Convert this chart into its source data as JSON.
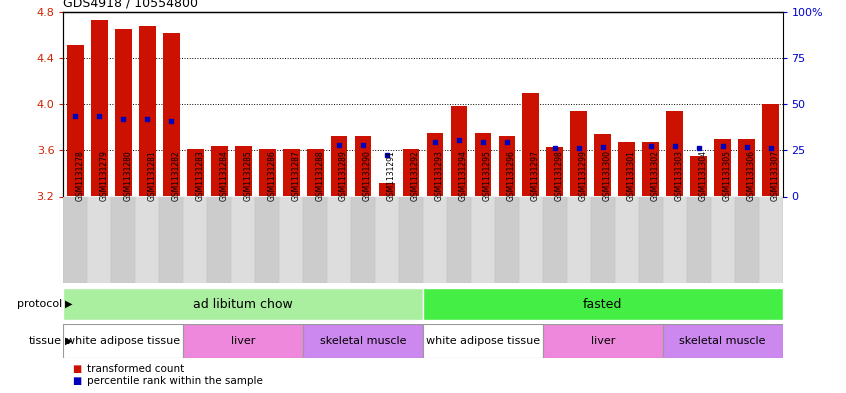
{
  "title": "GDS4918 / 10554800",
  "samples": [
    "GSM1131278",
    "GSM1131279",
    "GSM1131280",
    "GSM1131281",
    "GSM1131282",
    "GSM1131283",
    "GSM1131284",
    "GSM1131285",
    "GSM1131286",
    "GSM1131287",
    "GSM1131288",
    "GSM1131289",
    "GSM1131290",
    "GSM1131291",
    "GSM1131292",
    "GSM1131293",
    "GSM1131294",
    "GSM1131295",
    "GSM1131296",
    "GSM1131297",
    "GSM1131298",
    "GSM1131299",
    "GSM1131300",
    "GSM1131301",
    "GSM1131302",
    "GSM1131303",
    "GSM1131304",
    "GSM1131305",
    "GSM1131306",
    "GSM1131307"
  ],
  "bar_values": [
    4.51,
    4.73,
    4.65,
    4.68,
    4.62,
    3.61,
    3.64,
    3.64,
    3.61,
    3.61,
    3.61,
    3.72,
    3.72,
    3.32,
    3.61,
    3.75,
    3.98,
    3.75,
    3.72,
    4.1,
    3.63,
    3.94,
    3.74,
    3.67,
    3.67,
    3.94,
    3.55,
    3.7,
    3.7,
    4.0
  ],
  "percentile_values": [
    3.9,
    3.9,
    3.87,
    3.87,
    3.85,
    null,
    null,
    null,
    null,
    null,
    null,
    3.65,
    3.65,
    3.56,
    null,
    3.67,
    3.69,
    3.67,
    3.67,
    null,
    3.62,
    3.62,
    3.63,
    null,
    3.64,
    3.64,
    3.62,
    3.64,
    3.63,
    3.62
  ],
  "ylim": [
    3.2,
    4.8
  ],
  "yticks_left": [
    3.2,
    3.6,
    4.0,
    4.4,
    4.8
  ],
  "yticks_right": [
    0,
    25,
    50,
    75,
    100
  ],
  "bar_color": "#cc1100",
  "dot_color": "#0000bb",
  "protocol_groups": [
    {
      "label": "ad libitum chow",
      "start": 0,
      "end": 14,
      "color": "#aaeea0"
    },
    {
      "label": "fasted",
      "start": 15,
      "end": 29,
      "color": "#44ee44"
    }
  ],
  "tissue_groups": [
    {
      "label": "white adipose tissue",
      "start": 0,
      "end": 4,
      "color": "#ffffff"
    },
    {
      "label": "liver",
      "start": 5,
      "end": 9,
      "color": "#ee88dd"
    },
    {
      "label": "skeletal muscle",
      "start": 10,
      "end": 14,
      "color": "#cc88ee"
    },
    {
      "label": "white adipose tissue",
      "start": 15,
      "end": 19,
      "color": "#ffffff"
    },
    {
      "label": "liver",
      "start": 20,
      "end": 24,
      "color": "#ee88dd"
    },
    {
      "label": "skeletal muscle",
      "start": 25,
      "end": 29,
      "color": "#cc88ee"
    }
  ],
  "legend_items": [
    {
      "label": "transformed count",
      "color": "#cc1100"
    },
    {
      "label": "percentile rank within the sample",
      "color": "#0000bb"
    }
  ],
  "bg_color_even": "#cccccc",
  "bg_color_odd": "#dddddd"
}
